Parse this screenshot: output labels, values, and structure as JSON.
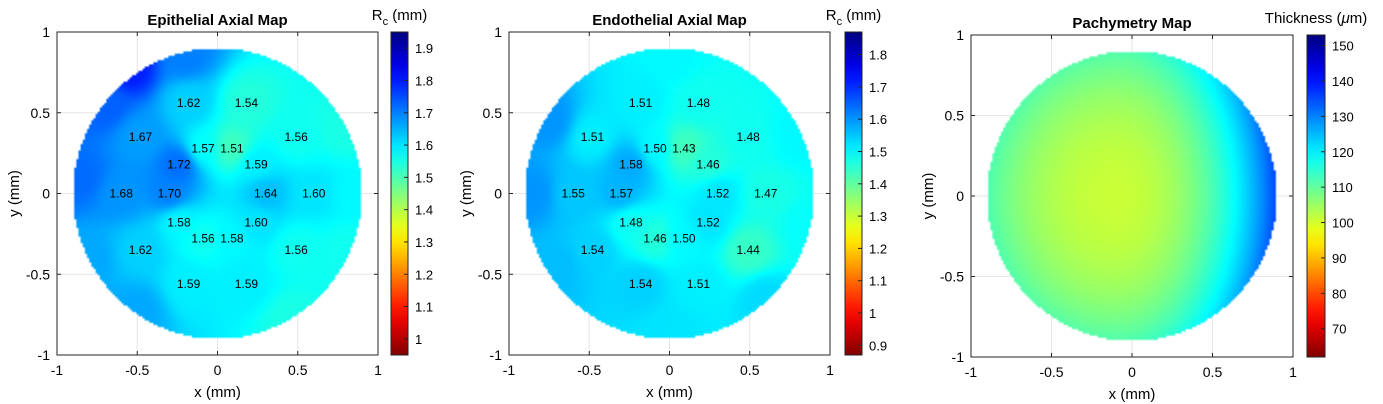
{
  "chart_data": [
    {
      "type": "heatmap",
      "title": "Epithelial Axial Map",
      "xlabel": "x (mm)",
      "ylabel": "y (mm)",
      "xlim": [
        -1,
        1
      ],
      "ylim": [
        -1,
        1
      ],
      "xticks": [
        -1,
        -0.5,
        0,
        0.5,
        1
      ],
      "yticks": [
        -1,
        -0.5,
        0,
        0.5,
        1
      ],
      "xtick_labels": [
        "-1",
        "-0.5",
        "0",
        "0.5",
        "1"
      ],
      "ytick_labels": [
        "-1",
        "-0.5",
        "0",
        "0.5",
        "1"
      ],
      "grid": true,
      "disk_radius": 0.9,
      "colorbar": {
        "label_main": "R",
        "label_sub": "c",
        "label_rest": " (mm)",
        "range": [
          0.95,
          1.95
        ],
        "ticks": [
          1,
          1.1,
          1.2,
          1.3,
          1.4,
          1.5,
          1.6,
          1.7,
          1.8,
          1.9
        ],
        "tick_labels": [
          "1",
          "1.1",
          "1.2",
          "1.3",
          "1.4",
          "1.5",
          "1.6",
          "1.7",
          "1.8",
          "1.9"
        ]
      },
      "annotations": [
        {
          "x": -0.18,
          "y": 0.56,
          "label": "1.62",
          "v": 1.62
        },
        {
          "x": 0.18,
          "y": 0.56,
          "label": "1.54",
          "v": 1.54
        },
        {
          "x": -0.48,
          "y": 0.35,
          "label": "1.67",
          "v": 1.67
        },
        {
          "x": 0.49,
          "y": 0.35,
          "label": "1.56",
          "v": 1.56
        },
        {
          "x": -0.09,
          "y": 0.28,
          "label": "1.57",
          "v": 1.57
        },
        {
          "x": 0.09,
          "y": 0.28,
          "label": "1.51",
          "v": 1.51
        },
        {
          "x": -0.24,
          "y": 0.18,
          "label": "1.72",
          "v": 1.72
        },
        {
          "x": 0.24,
          "y": 0.18,
          "label": "1.59",
          "v": 1.59
        },
        {
          "x": -0.6,
          "y": 0.0,
          "label": "1.68",
          "v": 1.68
        },
        {
          "x": -0.3,
          "y": 0.0,
          "label": "1.70",
          "v": 1.7
        },
        {
          "x": 0.3,
          "y": 0.0,
          "label": "1.64",
          "v": 1.64
        },
        {
          "x": 0.6,
          "y": 0.0,
          "label": "1.60",
          "v": 1.6
        },
        {
          "x": -0.24,
          "y": -0.18,
          "label": "1.58",
          "v": 1.58
        },
        {
          "x": 0.24,
          "y": -0.18,
          "label": "1.60",
          "v": 1.6
        },
        {
          "x": -0.09,
          "y": -0.28,
          "label": "1.56",
          "v": 1.56
        },
        {
          "x": 0.09,
          "y": -0.28,
          "label": "1.58",
          "v": 1.58
        },
        {
          "x": -0.48,
          "y": -0.35,
          "label": "1.62",
          "v": 1.62
        },
        {
          "x": 0.49,
          "y": -0.35,
          "label": "1.56",
          "v": 1.56
        },
        {
          "x": -0.18,
          "y": -0.56,
          "label": "1.59",
          "v": 1.59
        },
        {
          "x": 0.18,
          "y": -0.56,
          "label": "1.59",
          "v": 1.59
        }
      ],
      "extra_points": [
        {
          "x": -0.55,
          "y": 0.78,
          "v": 1.8
        },
        {
          "x": -0.85,
          "y": 0.1,
          "v": 1.72
        },
        {
          "x": -0.7,
          "y": 0.55,
          "v": 1.73
        },
        {
          "x": -0.8,
          "y": -0.4,
          "v": 1.66
        },
        {
          "x": -0.2,
          "y": 0.85,
          "v": 1.7
        },
        {
          "x": 0.45,
          "y": -0.78,
          "v": 1.55
        },
        {
          "x": 0.8,
          "y": -0.35,
          "v": 1.56
        },
        {
          "x": 0.8,
          "y": 0.4,
          "v": 1.55
        },
        {
          "x": 0.85,
          "y": 0.0,
          "v": 1.58
        },
        {
          "x": -0.5,
          "y": -0.72,
          "v": 1.66
        }
      ]
    },
    {
      "type": "heatmap",
      "title": "Endothelial Axial Map",
      "xlabel": "x (mm)",
      "ylabel": "y (mm)",
      "xlim": [
        -1,
        1
      ],
      "ylim": [
        -1,
        1
      ],
      "xticks": [
        -1,
        -0.5,
        0,
        0.5,
        1
      ],
      "yticks": [
        -1,
        -0.5,
        0,
        0.5,
        1
      ],
      "xtick_labels": [
        "-1",
        "-0.5",
        "0",
        "0.5",
        "1"
      ],
      "ytick_labels": [
        "-1",
        "-0.5",
        "0",
        "0.5",
        "1"
      ],
      "grid": true,
      "disk_radius": 0.9,
      "colorbar": {
        "label_main": "R",
        "label_sub": "c",
        "label_rest": " (mm)",
        "range": [
          0.87,
          1.87
        ],
        "ticks": [
          0.9,
          1,
          1.1,
          1.2,
          1.3,
          1.4,
          1.5,
          1.6,
          1.7,
          1.8
        ],
        "tick_labels": [
          "0.9",
          "1",
          "1.1",
          "1.2",
          "1.3",
          "1.4",
          "1.5",
          "1.6",
          "1.7",
          "1.8"
        ]
      },
      "annotations": [
        {
          "x": -0.18,
          "y": 0.56,
          "label": "1.51",
          "v": 1.51
        },
        {
          "x": 0.18,
          "y": 0.56,
          "label": "1.48",
          "v": 1.48
        },
        {
          "x": -0.48,
          "y": 0.35,
          "label": "1.51",
          "v": 1.51
        },
        {
          "x": 0.49,
          "y": 0.35,
          "label": "1.48",
          "v": 1.48
        },
        {
          "x": -0.09,
          "y": 0.28,
          "label": "1.50",
          "v": 1.5
        },
        {
          "x": 0.09,
          "y": 0.28,
          "label": "1.43",
          "v": 1.43
        },
        {
          "x": -0.24,
          "y": 0.18,
          "label": "1.58",
          "v": 1.58
        },
        {
          "x": 0.24,
          "y": 0.18,
          "label": "1.46",
          "v": 1.46
        },
        {
          "x": -0.6,
          "y": 0.0,
          "label": "1.55",
          "v": 1.55
        },
        {
          "x": -0.3,
          "y": 0.0,
          "label": "1.57",
          "v": 1.57
        },
        {
          "x": 0.3,
          "y": 0.0,
          "label": "1.52",
          "v": 1.52
        },
        {
          "x": 0.6,
          "y": 0.0,
          "label": "1.47",
          "v": 1.47
        },
        {
          "x": -0.24,
          "y": -0.18,
          "label": "1.48",
          "v": 1.48
        },
        {
          "x": 0.24,
          "y": -0.18,
          "label": "1.52",
          "v": 1.52
        },
        {
          "x": -0.09,
          "y": -0.28,
          "label": "1.46",
          "v": 1.46
        },
        {
          "x": 0.09,
          "y": -0.28,
          "label": "1.50",
          "v": 1.5
        },
        {
          "x": -0.48,
          "y": -0.35,
          "label": "1.54",
          "v": 1.54
        },
        {
          "x": 0.49,
          "y": -0.35,
          "label": "1.44",
          "v": 1.44
        },
        {
          "x": -0.18,
          "y": -0.56,
          "label": "1.54",
          "v": 1.54
        },
        {
          "x": 0.18,
          "y": -0.56,
          "label": "1.51",
          "v": 1.51
        }
      ],
      "extra_points": [
        {
          "x": -0.85,
          "y": 0.0,
          "v": 1.6
        },
        {
          "x": -0.75,
          "y": 0.45,
          "v": 1.6
        },
        {
          "x": -0.7,
          "y": -0.45,
          "v": 1.56
        },
        {
          "x": 0.6,
          "y": -0.65,
          "v": 1.53
        },
        {
          "x": 0.8,
          "y": 0.35,
          "v": 1.5
        },
        {
          "x": 0.85,
          "y": -0.2,
          "v": 1.49
        },
        {
          "x": 0.0,
          "y": 0.85,
          "v": 1.5
        },
        {
          "x": 0.0,
          "y": -0.85,
          "v": 1.52
        }
      ]
    },
    {
      "type": "heatmap",
      "title": "Pachymetry Map",
      "xlabel": "x (mm)",
      "ylabel": "y (mm)",
      "xlim": [
        -1,
        1
      ],
      "ylim": [
        -1,
        1
      ],
      "xticks": [
        -1,
        -0.5,
        0,
        0.5,
        1
      ],
      "yticks": [
        -1,
        -0.5,
        0,
        0.5,
        1
      ],
      "xtick_labels": [
        "-1",
        "-0.5",
        "0",
        "0.5",
        "1"
      ],
      "ytick_labels": [
        "-1",
        "-0.5",
        "0",
        "0.5",
        "1"
      ],
      "grid": true,
      "disk_radius": 0.9,
      "colorbar": {
        "label_main": "Thickness (",
        "label_sub": "",
        "label_mu": "μ",
        "label_rest": "m)",
        "range": [
          62,
          153
        ],
        "ticks": [
          70,
          80,
          90,
          100,
          110,
          120,
          130,
          140,
          150
        ],
        "tick_labels": [
          "70",
          "80",
          "90",
          "100",
          "110",
          "120",
          "130",
          "140",
          "150"
        ]
      },
      "thickness_field": {
        "center": [
          -0.1,
          0.0
        ],
        "center_value": 101,
        "rim_value_left": 117,
        "rim_value_right": 132,
        "rim_value_top": 113,
        "rim_value_bottom": 113
      }
    }
  ]
}
